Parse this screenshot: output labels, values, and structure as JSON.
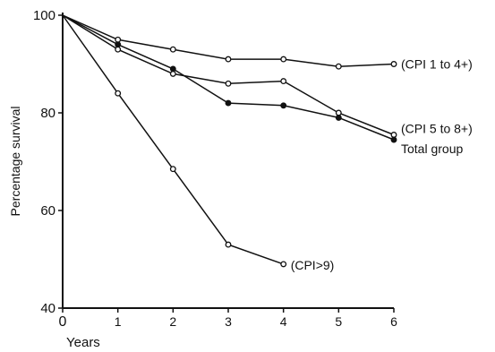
{
  "chart_data": {
    "type": "line",
    "title": "",
    "xlabel": "Years",
    "ylabel": "Percentage survival",
    "xlim": [
      0,
      6
    ],
    "ylim": [
      40,
      100
    ],
    "xticks": [
      "0",
      "1",
      "2",
      "3",
      "4",
      "5",
      "6"
    ],
    "yticks": [
      "40",
      "60",
      "80",
      "100"
    ],
    "grid": false,
    "series": [
      {
        "name": "(CPI 1 to 4+)",
        "marker": "open",
        "x": [
          0,
          1,
          2,
          3,
          4,
          5,
          6
        ],
        "y": [
          100,
          95,
          93,
          91,
          91,
          89.5,
          90
        ]
      },
      {
        "name": "(CPI 5 to 8+)",
        "marker": "open",
        "x": [
          0,
          1,
          2,
          3,
          4,
          5,
          6
        ],
        "y": [
          100,
          93,
          88,
          86,
          86.5,
          80,
          75.5
        ]
      },
      {
        "name": "Total group",
        "marker": "filled",
        "x": [
          0,
          1,
          2,
          3,
          4,
          5,
          6
        ],
        "y": [
          100,
          94,
          89,
          82,
          81.5,
          79,
          74.5
        ]
      },
      {
        "name": "(CPI>9)",
        "marker": "open",
        "x": [
          0,
          1,
          2,
          3,
          4
        ],
        "y": [
          100,
          84,
          68.5,
          53,
          49
        ]
      }
    ]
  }
}
